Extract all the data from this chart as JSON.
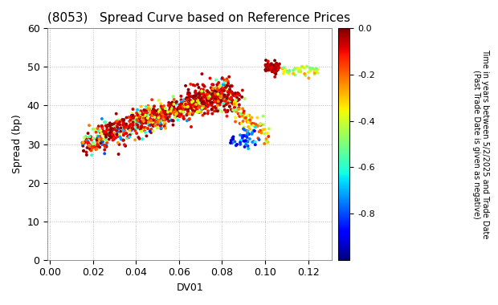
{
  "title": "(8053)   Spread Curve based on Reference Prices",
  "xlabel": "DV01",
  "ylabel": "Spread (bp)",
  "xlim": [
    -0.001,
    0.131
  ],
  "ylim": [
    0,
    60
  ],
  "xticks": [
    0.0,
    0.02,
    0.04,
    0.06,
    0.08,
    0.1,
    0.12
  ],
  "yticks": [
    0,
    10,
    20,
    30,
    40,
    50,
    60
  ],
  "colorbar_label_line1": "Time in years between 5/2/2025 and Trade Date",
  "colorbar_label_line2": "(Past Trade Date is given as negative)",
  "colorbar_ticks": [
    0.0,
    -0.2,
    -0.4,
    -0.6,
    -0.8
  ],
  "cmap": "jet",
  "vmin": -1.0,
  "vmax": 0.0,
  "marker_size": 8,
  "background_color": "#ffffff",
  "grid_color": "#bbbbbb",
  "title_fontsize": 11,
  "axis_fontsize": 9,
  "label_fontsize": 9
}
